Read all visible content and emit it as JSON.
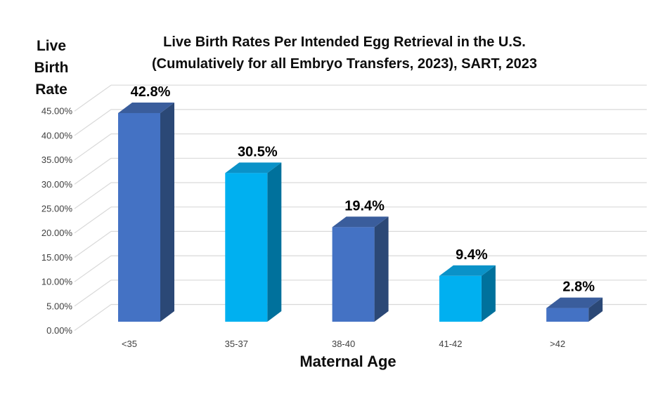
{
  "header": {
    "title_line1": "Live Birth Rates Per Intended Egg Retrieval in the U.S.",
    "title_line2": "(Cumulatively for all Embryo Transfers, 2023), SART, 2023"
  },
  "y_axis_title_lines": [
    "Live",
    "Birth",
    "Rate"
  ],
  "x_axis_title": "Maternal Age",
  "chart_data": {
    "type": "bar",
    "style": "3d-column",
    "title": "Live Birth Rates Per Intended Egg Retrieval in the U.S. (Cumulatively for all Embryo Transfers, 2023), SART, 2023",
    "xlabel": "Maternal Age",
    "ylabel": "Live Birth Rate",
    "categories": [
      "<35",
      "35-37",
      "38-40",
      "41-42",
      ">42"
    ],
    "values": [
      42.8,
      30.5,
      19.4,
      9.4,
      2.8
    ],
    "data_labels": [
      "42.8%",
      "30.5%",
      "19.4%",
      "9.4%",
      "2.8%"
    ],
    "ylim": [
      0,
      45
    ],
    "ytick_step": 5,
    "ytick_labels": [
      "0.00%",
      "5.00%",
      "10.00%",
      "15.00%",
      "20.00%",
      "25.00%",
      "30.00%",
      "35.00%",
      "40.00%",
      "45.00%"
    ],
    "grid": true,
    "legend": false,
    "bar_color_keys": [
      "blue",
      "cyan",
      "blue",
      "cyan",
      "blue"
    ]
  },
  "colors": {
    "blue_front": "#4472C4",
    "blue_top": "#3A5D9C",
    "blue_side": "#2B4876",
    "cyan_front": "#00B0F0",
    "cyan_top": "#0A92C8",
    "cyan_side": "#00719C",
    "gridline": "#D9D9D9",
    "axis_text": "#404040",
    "label_text": "#000000",
    "background": "#FFFFFF"
  }
}
